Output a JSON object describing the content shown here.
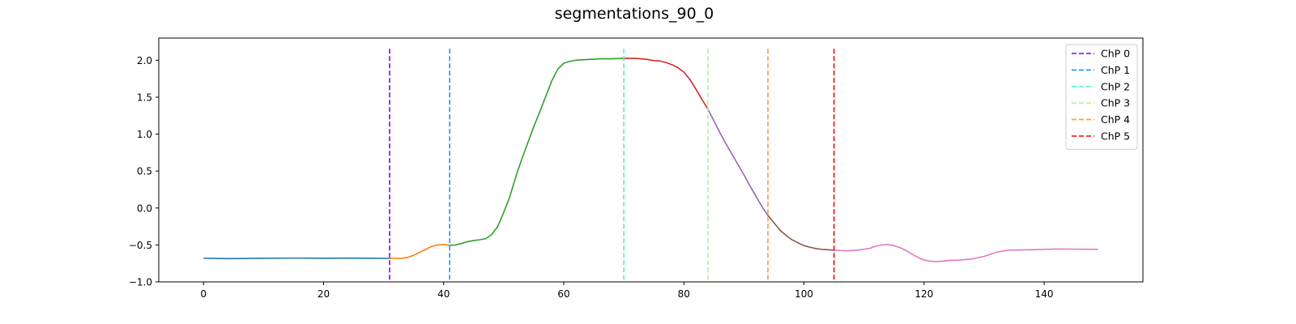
{
  "chart_data": {
    "type": "line",
    "title": "segmentations_90_0",
    "xlabel": "",
    "ylabel": "",
    "xlim": [
      -7.45,
      156.45
    ],
    "ylim": [
      -1.0,
      2.3
    ],
    "xticks": [
      0,
      20,
      40,
      60,
      80,
      100,
      120,
      140
    ],
    "yticks": [
      -1.0,
      -0.5,
      0.0,
      0.5,
      1.0,
      1.5,
      2.0
    ],
    "grid": false,
    "legend_position": "top-right",
    "segments": [
      {
        "color": "#1f77b4",
        "points": [
          [
            0,
            -0.68
          ],
          [
            4,
            -0.685
          ],
          [
            10,
            -0.68
          ],
          [
            16,
            -0.678
          ],
          [
            20,
            -0.68
          ],
          [
            24,
            -0.679
          ],
          [
            28,
            -0.68
          ],
          [
            31,
            -0.682
          ]
        ]
      },
      {
        "color": "#ff7f0e",
        "points": [
          [
            31,
            -0.682
          ],
          [
            33,
            -0.68
          ],
          [
            34,
            -0.67
          ],
          [
            35,
            -0.64
          ],
          [
            36,
            -0.6
          ],
          [
            37,
            -0.56
          ],
          [
            38,
            -0.52
          ],
          [
            39,
            -0.5
          ],
          [
            40,
            -0.495
          ],
          [
            41,
            -0.505
          ]
        ]
      },
      {
        "color": "#2ca02c",
        "points": [
          [
            41,
            -0.505
          ],
          [
            42,
            -0.5
          ],
          [
            43,
            -0.48
          ],
          [
            44,
            -0.455
          ],
          [
            45,
            -0.44
          ],
          [
            46,
            -0.43
          ],
          [
            47,
            -0.415
          ],
          [
            48,
            -0.36
          ],
          [
            49,
            -0.25
          ],
          [
            50,
            -0.06
          ],
          [
            51,
            0.15
          ],
          [
            52,
            0.42
          ],
          [
            53,
            0.66
          ],
          [
            54,
            0.88
          ],
          [
            55,
            1.1
          ],
          [
            56,
            1.3
          ],
          [
            57,
            1.51
          ],
          [
            58,
            1.72
          ],
          [
            59,
            1.88
          ],
          [
            60,
            1.96
          ],
          [
            61,
            1.985
          ],
          [
            62,
            2.0
          ],
          [
            64,
            2.01
          ],
          [
            66,
            2.02
          ],
          [
            68,
            2.02
          ],
          [
            70,
            2.025
          ]
        ]
      },
      {
        "color": "#d62728",
        "points": [
          [
            70,
            2.025
          ],
          [
            72,
            2.025
          ],
          [
            74,
            2.01
          ],
          [
            75,
            1.995
          ],
          [
            76,
            1.99
          ],
          [
            77,
            1.97
          ],
          [
            78,
            1.94
          ],
          [
            79,
            1.9
          ],
          [
            80,
            1.84
          ],
          [
            81,
            1.74
          ],
          [
            82,
            1.61
          ],
          [
            83,
            1.47
          ],
          [
            84,
            1.34
          ]
        ]
      },
      {
        "color": "#9467bd",
        "points": [
          [
            84,
            1.34
          ],
          [
            85,
            1.18
          ],
          [
            86,
            1.02
          ],
          [
            87,
            0.87
          ],
          [
            88,
            0.73
          ],
          [
            89,
            0.59
          ],
          [
            90,
            0.45
          ],
          [
            91,
            0.3
          ],
          [
            92,
            0.16
          ],
          [
            93,
            0.02
          ],
          [
            94,
            -0.1
          ]
        ]
      },
      {
        "color": "#8c564b",
        "points": [
          [
            94,
            -0.1
          ],
          [
            95,
            -0.2
          ],
          [
            96,
            -0.3
          ],
          [
            97,
            -0.37
          ],
          [
            98,
            -0.43
          ],
          [
            99,
            -0.47
          ],
          [
            100,
            -0.51
          ],
          [
            101,
            -0.53
          ],
          [
            102,
            -0.55
          ],
          [
            103,
            -0.56
          ],
          [
            104,
            -0.565
          ],
          [
            105,
            -0.57
          ]
        ]
      },
      {
        "color": "#e377c2",
        "points": [
          [
            105,
            -0.57
          ],
          [
            107,
            -0.58
          ],
          [
            109,
            -0.57
          ],
          [
            111,
            -0.545
          ],
          [
            112,
            -0.515
          ],
          [
            113,
            -0.5
          ],
          [
            114,
            -0.495
          ],
          [
            115,
            -0.51
          ],
          [
            116,
            -0.535
          ],
          [
            117,
            -0.575
          ],
          [
            118,
            -0.625
          ],
          [
            119,
            -0.67
          ],
          [
            120,
            -0.705
          ],
          [
            121,
            -0.72
          ],
          [
            122,
            -0.725
          ],
          [
            123,
            -0.72
          ],
          [
            124,
            -0.71
          ],
          [
            126,
            -0.705
          ],
          [
            128,
            -0.69
          ],
          [
            130,
            -0.655
          ],
          [
            132,
            -0.6
          ],
          [
            134,
            -0.57
          ],
          [
            136,
            -0.568
          ],
          [
            138,
            -0.565
          ],
          [
            140,
            -0.56
          ],
          [
            142,
            -0.555
          ],
          [
            144,
            -0.556
          ],
          [
            146,
            -0.558
          ],
          [
            149,
            -0.56
          ]
        ]
      }
    ],
    "changepoints": [
      {
        "label": "ChP 0",
        "x": 31,
        "color": "#8000ff"
      },
      {
        "label": "ChP 1",
        "x": 41,
        "color": "#1996f3"
      },
      {
        "label": "ChP 2",
        "x": 70,
        "color": "#4cf2ce"
      },
      {
        "label": "ChP 3",
        "x": 84,
        "color": "#b2f396"
      },
      {
        "label": "ChP 4",
        "x": 94,
        "color": "#ff964f"
      },
      {
        "label": "ChP 5",
        "x": 105,
        "color": "#ff0000"
      }
    ],
    "changepoint_y_range": [
      -0.97,
      2.16
    ]
  }
}
